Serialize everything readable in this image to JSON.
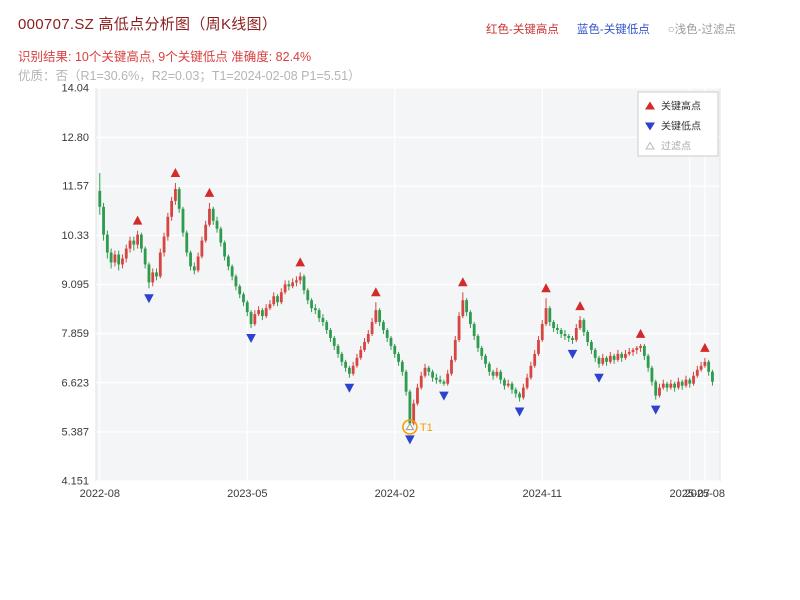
{
  "header": {
    "title": "000707.SZ 高低点分析图（周K线图）",
    "color_legend": [
      {
        "text": "红色-关键高点",
        "color": "#cc3333"
      },
      {
        "text": "蓝色-关键低点",
        "color": "#3355cc"
      },
      {
        "text": "○浅色-过滤点",
        "color": "#9a9a9a"
      }
    ],
    "result_line": "识别结果: 10个关键高点, 9个关键低点  准确度: 82.4%",
    "quality_line": "优质：否（R1=30.6%，R2=0.03；T1=2024-02-08 P1=5.51）"
  },
  "chart_data": {
    "type": "candlestick",
    "symbol": "000707.SZ",
    "period": "weekly",
    "title": "000707.SZ 高低点分析图（周K线图）",
    "ylim": [
      4.151,
      14.04
    ],
    "xlim": [
      -1,
      164
    ],
    "grid": true,
    "y_ticks": [
      {
        "value": 4.151,
        "label": "4.151"
      },
      {
        "value": 5.387,
        "label": "5.387"
      },
      {
        "value": 6.623,
        "label": "6.623"
      },
      {
        "value": 7.859,
        "label": "7.859"
      },
      {
        "value": 9.095,
        "label": "9.095"
      },
      {
        "value": 10.33,
        "label": "10.33"
      },
      {
        "value": 11.57,
        "label": "11.57"
      },
      {
        "value": 12.8,
        "label": "12.80"
      },
      {
        "value": 14.04,
        "label": "14.04"
      }
    ],
    "x_ticks": [
      {
        "i": 0,
        "label": "2022-08"
      },
      {
        "i": 39,
        "label": "2023-05"
      },
      {
        "i": 78,
        "label": "2024-02"
      },
      {
        "i": 117,
        "label": "2024-11"
      },
      {
        "i": 156,
        "label": "2025-07"
      },
      {
        "i": 160,
        "label": "2025-08"
      }
    ],
    "legend": [
      {
        "label": "关键高点",
        "marker": "triangle-up",
        "color": "#d42a2a"
      },
      {
        "label": "关键低点",
        "marker": "triangle-down",
        "color": "#2b43cf"
      },
      {
        "label": "过滤点",
        "marker": "triangle-open",
        "color": "#bbbbbb"
      }
    ],
    "colors": {
      "up": "#d64541",
      "down": "#2e9b4e",
      "key_high": "#d42a2a",
      "key_low": "#2b43cf",
      "t1": "#f59e00",
      "panel": "#f4f5f6",
      "grid": "#ffffff"
    },
    "key_highs": [
      {
        "i": 10,
        "price": 10.45
      },
      {
        "i": 20,
        "price": 11.65
      },
      {
        "i": 29,
        "price": 11.15
      },
      {
        "i": 53,
        "price": 9.4
      },
      {
        "i": 73,
        "price": 8.65
      },
      {
        "i": 96,
        "price": 8.9
      },
      {
        "i": 118,
        "price": 8.75
      },
      {
        "i": 127,
        "price": 8.3
      },
      {
        "i": 143,
        "price": 7.6
      },
      {
        "i": 160,
        "price": 7.25
      }
    ],
    "key_lows": [
      {
        "i": 13,
        "price": 9.0
      },
      {
        "i": 40,
        "price": 8.0
      },
      {
        "i": 66,
        "price": 6.75
      },
      {
        "i": 82,
        "price": 5.45
      },
      {
        "i": 91,
        "price": 6.55
      },
      {
        "i": 111,
        "price": 6.15
      },
      {
        "i": 125,
        "price": 7.6
      },
      {
        "i": 132,
        "price": 7.0
      },
      {
        "i": 147,
        "price": 6.2
      }
    ],
    "t1_annotation": {
      "i": 82,
      "price": 5.51,
      "label": "T1"
    },
    "candles": [
      [
        11.45,
        11.9,
        10.85,
        11.05
      ],
      [
        11.05,
        11.15,
        10.2,
        10.35
      ],
      [
        10.35,
        10.45,
        9.75,
        9.9
      ],
      [
        9.9,
        10.0,
        9.5,
        9.65
      ],
      [
        9.65,
        9.95,
        9.55,
        9.85
      ],
      [
        9.85,
        9.95,
        9.45,
        9.6
      ],
      [
        9.6,
        9.85,
        9.5,
        9.75
      ],
      [
        9.75,
        10.1,
        9.65,
        10.0
      ],
      [
        10.0,
        10.3,
        9.9,
        10.2
      ],
      [
        10.2,
        10.3,
        9.95,
        10.1
      ],
      [
        10.1,
        10.45,
        10.0,
        10.35
      ],
      [
        10.35,
        10.4,
        9.9,
        10.0
      ],
      [
        10.0,
        10.05,
        9.5,
        9.6
      ],
      [
        9.6,
        9.65,
        9.0,
        9.15
      ],
      [
        9.15,
        9.5,
        9.05,
        9.4
      ],
      [
        9.4,
        9.5,
        9.2,
        9.3
      ],
      [
        9.3,
        10.0,
        9.25,
        9.9
      ],
      [
        9.9,
        10.4,
        9.8,
        10.3
      ],
      [
        10.3,
        10.9,
        10.2,
        10.8
      ],
      [
        10.8,
        11.3,
        10.7,
        11.2
      ],
      [
        11.2,
        11.65,
        11.1,
        11.5
      ],
      [
        11.5,
        11.55,
        10.9,
        11.0
      ],
      [
        11.0,
        11.05,
        10.3,
        10.4
      ],
      [
        10.4,
        10.45,
        9.8,
        9.9
      ],
      [
        9.9,
        9.95,
        9.45,
        9.55
      ],
      [
        9.55,
        9.65,
        9.35,
        9.45
      ],
      [
        9.45,
        9.9,
        9.4,
        9.8
      ],
      [
        9.8,
        10.3,
        9.75,
        10.2
      ],
      [
        10.2,
        10.7,
        10.15,
        10.6
      ],
      [
        10.6,
        11.15,
        10.55,
        11.0
      ],
      [
        11.0,
        11.05,
        10.6,
        10.7
      ],
      [
        10.7,
        10.8,
        10.4,
        10.5
      ],
      [
        10.5,
        10.55,
        10.05,
        10.15
      ],
      [
        10.15,
        10.2,
        9.7,
        9.8
      ],
      [
        9.8,
        9.85,
        9.45,
        9.55
      ],
      [
        9.55,
        9.6,
        9.2,
        9.3
      ],
      [
        9.3,
        9.35,
        8.95,
        9.05
      ],
      [
        9.05,
        9.1,
        8.75,
        8.85
      ],
      [
        8.85,
        8.9,
        8.55,
        8.65
      ],
      [
        8.65,
        8.7,
        8.3,
        8.4
      ],
      [
        8.4,
        8.45,
        8.0,
        8.1
      ],
      [
        8.1,
        8.45,
        8.05,
        8.35
      ],
      [
        8.35,
        8.55,
        8.3,
        8.45
      ],
      [
        8.45,
        8.5,
        8.2,
        8.3
      ],
      [
        8.3,
        8.6,
        8.25,
        8.5
      ],
      [
        8.5,
        8.7,
        8.45,
        8.6
      ],
      [
        8.6,
        8.9,
        8.55,
        8.8
      ],
      [
        8.8,
        8.85,
        8.55,
        8.65
      ],
      [
        8.65,
        9.0,
        8.6,
        8.9
      ],
      [
        8.9,
        9.2,
        8.85,
        9.1
      ],
      [
        9.1,
        9.2,
        8.95,
        9.05
      ],
      [
        9.05,
        9.25,
        9.0,
        9.15
      ],
      [
        9.15,
        9.3,
        9.05,
        9.2
      ],
      [
        9.2,
        9.4,
        9.1,
        9.3
      ],
      [
        9.3,
        9.35,
        8.85,
        8.95
      ],
      [
        8.95,
        9.0,
        8.6,
        8.7
      ],
      [
        8.7,
        8.75,
        8.4,
        8.5
      ],
      [
        8.5,
        8.6,
        8.35,
        8.45
      ],
      [
        8.45,
        8.5,
        8.15,
        8.25
      ],
      [
        8.25,
        8.35,
        8.05,
        8.15
      ],
      [
        8.15,
        8.2,
        7.85,
        7.95
      ],
      [
        7.95,
        8.0,
        7.65,
        7.75
      ],
      [
        7.75,
        7.8,
        7.45,
        7.55
      ],
      [
        7.55,
        7.6,
        7.25,
        7.35
      ],
      [
        7.35,
        7.4,
        7.05,
        7.15
      ],
      [
        7.15,
        7.2,
        6.9,
        7.0
      ],
      [
        7.0,
        7.05,
        6.75,
        6.85
      ],
      [
        6.85,
        7.15,
        6.8,
        7.05
      ],
      [
        7.05,
        7.35,
        7.0,
        7.25
      ],
      [
        7.25,
        7.55,
        7.2,
        7.45
      ],
      [
        7.45,
        7.75,
        7.4,
        7.65
      ],
      [
        7.65,
        7.95,
        7.6,
        7.85
      ],
      [
        7.85,
        8.25,
        7.8,
        8.15
      ],
      [
        8.15,
        8.65,
        8.1,
        8.45
      ],
      [
        8.45,
        8.5,
        8.05,
        8.15
      ],
      [
        8.15,
        8.2,
        7.85,
        7.95
      ],
      [
        7.95,
        8.0,
        7.65,
        7.75
      ],
      [
        7.75,
        7.8,
        7.45,
        7.55
      ],
      [
        7.55,
        7.6,
        7.25,
        7.35
      ],
      [
        7.35,
        7.4,
        7.05,
        7.15
      ],
      [
        7.15,
        7.2,
        6.8,
        6.9
      ],
      [
        6.9,
        6.95,
        6.3,
        6.4
      ],
      [
        6.4,
        6.45,
        5.45,
        5.6
      ],
      [
        5.6,
        6.2,
        5.55,
        6.1
      ],
      [
        6.1,
        6.6,
        6.05,
        6.5
      ],
      [
        6.5,
        6.9,
        6.45,
        6.8
      ],
      [
        6.8,
        7.1,
        6.75,
        7.0
      ],
      [
        7.0,
        7.05,
        6.8,
        6.9
      ],
      [
        6.9,
        6.95,
        6.65,
        6.75
      ],
      [
        6.75,
        6.85,
        6.6,
        6.7
      ],
      [
        6.7,
        6.8,
        6.6,
        6.65
      ],
      [
        6.65,
        6.7,
        6.55,
        6.6
      ],
      [
        6.6,
        6.95,
        6.55,
        6.85
      ],
      [
        6.85,
        7.3,
        6.8,
        7.2
      ],
      [
        7.2,
        7.8,
        7.15,
        7.7
      ],
      [
        7.7,
        8.4,
        7.65,
        8.3
      ],
      [
        8.3,
        8.9,
        8.25,
        8.7
      ],
      [
        8.7,
        8.75,
        8.3,
        8.4
      ],
      [
        8.4,
        8.45,
        8.0,
        8.1
      ],
      [
        8.1,
        8.15,
        7.7,
        7.8
      ],
      [
        7.8,
        7.85,
        7.4,
        7.5
      ],
      [
        7.5,
        7.55,
        7.2,
        7.3
      ],
      [
        7.3,
        7.35,
        7.0,
        7.1
      ],
      [
        7.1,
        7.15,
        6.8,
        6.9
      ],
      [
        6.9,
        6.95,
        6.7,
        6.8
      ],
      [
        6.8,
        7.0,
        6.75,
        6.9
      ],
      [
        6.9,
        6.95,
        6.6,
        6.7
      ],
      [
        6.7,
        6.75,
        6.45,
        6.55
      ],
      [
        6.55,
        6.7,
        6.5,
        6.6
      ],
      [
        6.6,
        6.65,
        6.35,
        6.45
      ],
      [
        6.45,
        6.5,
        6.25,
        6.35
      ],
      [
        6.35,
        6.4,
        6.15,
        6.25
      ],
      [
        6.25,
        6.6,
        6.2,
        6.5
      ],
      [
        6.5,
        6.85,
        6.45,
        6.75
      ],
      [
        6.75,
        7.15,
        6.7,
        7.05
      ],
      [
        7.05,
        7.45,
        7.0,
        7.35
      ],
      [
        7.35,
        7.8,
        7.3,
        7.7
      ],
      [
        7.7,
        8.2,
        7.65,
        8.1
      ],
      [
        8.1,
        8.75,
        8.05,
        8.5
      ],
      [
        8.5,
        8.55,
        8.05,
        8.15
      ],
      [
        8.15,
        8.2,
        7.9,
        8.0
      ],
      [
        8.0,
        8.1,
        7.85,
        7.95
      ],
      [
        7.95,
        8.0,
        7.75,
        7.85
      ],
      [
        7.85,
        7.95,
        7.7,
        7.8
      ],
      [
        7.8,
        7.85,
        7.65,
        7.75
      ],
      [
        7.75,
        7.8,
        7.6,
        7.7
      ],
      [
        7.7,
        8.1,
        7.65,
        8.0
      ],
      [
        8.0,
        8.3,
        7.95,
        8.2
      ],
      [
        8.2,
        8.25,
        7.8,
        7.9
      ],
      [
        7.9,
        7.95,
        7.55,
        7.65
      ],
      [
        7.65,
        7.7,
        7.35,
        7.45
      ],
      [
        7.45,
        7.5,
        7.15,
        7.25
      ],
      [
        7.25,
        7.3,
        7.0,
        7.1
      ],
      [
        7.1,
        7.35,
        7.05,
        7.25
      ],
      [
        7.25,
        7.3,
        7.05,
        7.15
      ],
      [
        7.15,
        7.4,
        7.1,
        7.3
      ],
      [
        7.3,
        7.35,
        7.1,
        7.2
      ],
      [
        7.2,
        7.45,
        7.15,
        7.35
      ],
      [
        7.35,
        7.4,
        7.15,
        7.25
      ],
      [
        7.25,
        7.45,
        7.2,
        7.35
      ],
      [
        7.35,
        7.5,
        7.3,
        7.4
      ],
      [
        7.4,
        7.5,
        7.3,
        7.45
      ],
      [
        7.45,
        7.55,
        7.35,
        7.5
      ],
      [
        7.5,
        7.6,
        7.4,
        7.55
      ],
      [
        7.55,
        7.6,
        7.2,
        7.3
      ],
      [
        7.3,
        7.35,
        6.9,
        7.0
      ],
      [
        7.0,
        7.05,
        6.55,
        6.65
      ],
      [
        6.65,
        6.7,
        6.2,
        6.3
      ],
      [
        6.3,
        6.6,
        6.25,
        6.5
      ],
      [
        6.5,
        6.7,
        6.45,
        6.6
      ],
      [
        6.6,
        6.65,
        6.4,
        6.5
      ],
      [
        6.5,
        6.7,
        6.45,
        6.6
      ],
      [
        6.6,
        6.65,
        6.4,
        6.5
      ],
      [
        6.5,
        6.75,
        6.45,
        6.65
      ],
      [
        6.65,
        6.7,
        6.45,
        6.55
      ],
      [
        6.55,
        6.8,
        6.5,
        6.7
      ],
      [
        6.7,
        6.75,
        6.5,
        6.6
      ],
      [
        6.6,
        6.9,
        6.55,
        6.8
      ],
      [
        6.8,
        7.05,
        6.75,
        6.95
      ],
      [
        6.95,
        7.15,
        6.9,
        7.05
      ],
      [
        7.05,
        7.25,
        7.0,
        7.15
      ],
      [
        7.15,
        7.2,
        6.8,
        6.9
      ],
      [
        6.9,
        6.95,
        6.55,
        6.65
      ]
    ]
  }
}
